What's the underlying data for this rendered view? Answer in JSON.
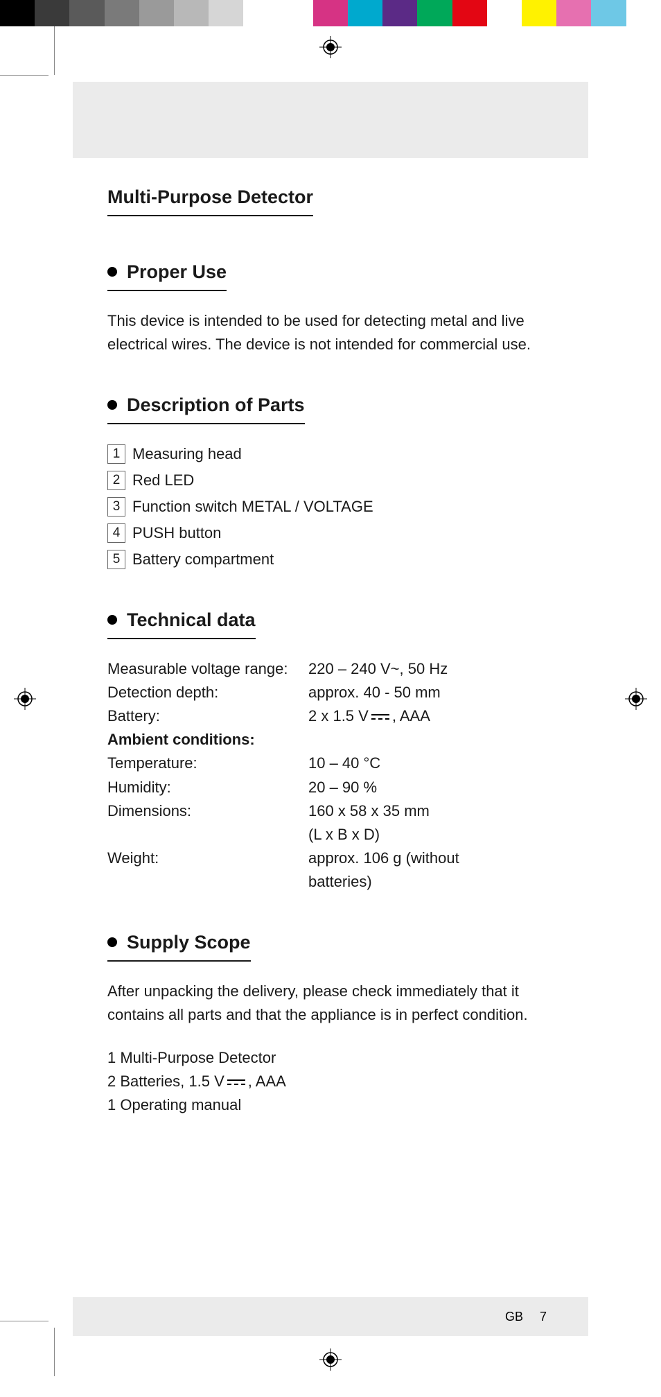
{
  "color_bar": {
    "top_colors": [
      "#000000",
      "#3a3a3a",
      "#5a5a5a",
      "#7a7a7a",
      "#9a9a9a",
      "#b8b8b8",
      "#d6d6d6",
      "#ffffff",
      "#ffffff",
      "#d63384",
      "#00a9ce",
      "#5b2a86",
      "#00a859",
      "#e30613",
      "#ffffff",
      "#fff200",
      "#e670b0",
      "#6ec8e6",
      "#ffffff"
    ]
  },
  "main_title": "Multi-Purpose Detector",
  "sections": {
    "proper_use": {
      "heading": "Proper Use",
      "body": "This device is intended to be used for detecting metal and live electrical wires. The device is not intended for commercial use."
    },
    "parts": {
      "heading": "Description of Parts",
      "items": [
        {
          "n": "1",
          "label": "Measuring head"
        },
        {
          "n": "2",
          "label": "Red LED"
        },
        {
          "n": "3",
          "label": "Function switch METAL / VOLTAGE"
        },
        {
          "n": "4",
          "label": "PUSH button"
        },
        {
          "n": "5",
          "label": "Battery compartment"
        }
      ]
    },
    "tech": {
      "heading": "Technical data",
      "rows": [
        {
          "label": "Measurable voltage range:",
          "value": "220 – 240 V~, 50 Hz"
        },
        {
          "label": "Detection depth:",
          "value": "approx. 40 - 50 mm"
        }
      ],
      "battery_label": "Battery:",
      "battery_prefix": "2 x 1.5 V",
      "battery_suffix": ", AAA",
      "ambient_heading": "Ambient conditions:",
      "ambient_rows": [
        {
          "label": "Temperature:",
          "value": "10 – 40 °C"
        },
        {
          "label": "Humidity:",
          "value": "20 – 90 %"
        },
        {
          "label": "Dimensions:",
          "value": "160 x 58 x 35 mm"
        },
        {
          "label": "",
          "value": "(L x B x D)"
        },
        {
          "label": "Weight:",
          "value": "approx. 106 g (without"
        },
        {
          "label": "",
          "value": "batteries)"
        }
      ]
    },
    "supply": {
      "heading": "Supply Scope",
      "body": "After unpacking the delivery, please check immediately that it contains all parts and that the appliance is in perfect condition.",
      "item1": "1 Multi-Purpose Detector",
      "item2_prefix": "2 Batteries, 1.5 V",
      "item2_suffix": ", AAA",
      "item3": "1 Operating manual"
    }
  },
  "footer": {
    "country": "GB",
    "page": "7"
  }
}
